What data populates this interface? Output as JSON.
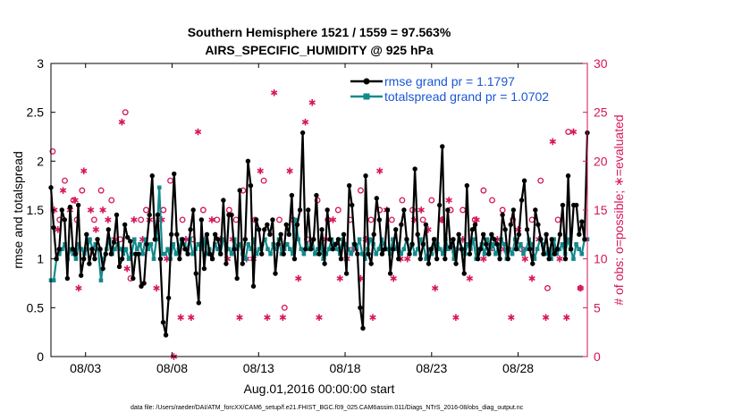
{
  "chart_data": {
    "type": "line",
    "title": "Southern Hemisphere 1521 / 1559 = 97.563%",
    "subtitle": "AIRS_SPECIFIC_HUMIDITY @ 925 hPa",
    "xlabel": "Aug.01,2016 00:00:00 start",
    "ylabel": "rmse and totalspread",
    "ylabel_right": "# of obs: o=possible; ∗=evaluated",
    "footer": "data file: /Users/raeder/DAI/ATM_forcXX/CAM6_setup/f.e21.FHIST_BGC.f09_025.CAM6assim.011/Diags_NTrS_2016-08/obs_diag_output.nc",
    "xlim": [
      1,
      32
    ],
    "ylim": [
      0,
      3
    ],
    "ylim_right": [
      0,
      30
    ],
    "x_ticks": [
      3,
      8,
      13,
      18,
      23,
      28
    ],
    "x_tick_labels": [
      "08/03",
      "08/08",
      "08/13",
      "08/18",
      "08/23",
      "08/28"
    ],
    "y_ticks": [
      0,
      0.5,
      1,
      1.5,
      2,
      2.5,
      3
    ],
    "y_tick_labels": [
      "0",
      "0.5",
      "1",
      "1.5",
      "2",
      "2.5",
      "3"
    ],
    "y_right_ticks": [
      0,
      5,
      10,
      15,
      20,
      25,
      30
    ],
    "y_right_tick_labels": [
      "0",
      "5",
      "10",
      "15",
      "20",
      "25",
      "30"
    ],
    "colors": {
      "rmse": "#000000",
      "spread": "#138a8c",
      "obs": "#d6155b",
      "legend_text": "#1a56d6"
    },
    "series": [
      {
        "name": "rmse",
        "legend": "rmse grand pr = 1.1797",
        "values": [
          1.73,
          1.32,
          1.0,
          1.1,
          1.5,
          1.4,
          0.8,
          1.53,
          1.1,
          1.05,
          1.55,
          0.83,
          1.0,
          1.25,
          0.95,
          1.1,
          1.0,
          1.2,
          1.1,
          0.9,
          1.05,
          1.3,
          1.05,
          1.17,
          1.45,
          0.92,
          1.0,
          1.35,
          1.22,
          1.18,
          0.8,
          1.05,
          1.05,
          0.72,
          0.75,
          1.15,
          1.45,
          1.85,
          1.2,
          1.45,
          1.0,
          0.35,
          0.22,
          0.6,
          1.25,
          1.87,
          1.25,
          1.0,
          1.2,
          1.1,
          1.05,
          1.3,
          1.5,
          0.85,
          0.55,
          1.4,
          0.9,
          1.25,
          1.05,
          1.0,
          1.25,
          1.2,
          1.05,
          1.6,
          0.95,
          1.45,
          1.45,
          1.1,
          0.8,
          1.7,
          0.95,
          1.2,
          2.0,
          1.75,
          0.72,
          1.4,
          1.3,
          1.05,
          1.3,
          1.35,
          1.25,
          1.4,
          0.85,
          1.15,
          1.25,
          1.05,
          1.35,
          1.25,
          1.65,
          1.0,
          1.35,
          1.5,
          2.29,
          1.1,
          1.5,
          1.1,
          1.2,
          1.65,
          1.05,
          1.3,
          0.95,
          1.5,
          1.2,
          1.1,
          1.15,
          1.2,
          1.0,
          1.25,
          0.85,
          1.75,
          1.55,
          1.15,
          1.05,
          0.5,
          0.29,
          1.85,
          1.05,
          0.95,
          1.25,
          1.62,
          1.4,
          1.05,
          1.1,
          1.5,
          0.85,
          1.1,
          1.3,
          1.0,
          1.35,
          1.5,
          1.2,
          1.05,
          1.15,
          1.92,
          1.25,
          1.0,
          1.15,
          1.35,
          0.95,
          1.1,
          1.2,
          1.0,
          1.55,
          2.15,
          1.0,
          1.5,
          1.12,
          1.2,
          0.95,
          1.25,
          1.1,
          0.85,
          1.75,
          1.05,
          1.3,
          1.35,
          1.0,
          1.1,
          1.25,
          1.15,
          1.05,
          1.25,
          1.2,
          1.15,
          1.0,
          1.45,
          1.3,
          1.0,
          1.35,
          1.5,
          1.1,
          1.25,
          1.6,
          1.8,
          1.3,
          1.1,
          0.95,
          1.5,
          1.35,
          1.2,
          1.05,
          1.25,
          1.0,
          1.2,
          1.05,
          1.1,
          1.25,
          1.55,
          1.0,
          1.85,
          1.1,
          1.55,
          1.55,
          1.25,
          1.38,
          1.2,
          2.29
        ]
      },
      {
        "name": "totalspread",
        "legend": "totalspread grand pr = 1.0702",
        "values": [
          0.78,
          0.78,
          1.0,
          1.05,
          1.1,
          1.15,
          1.0,
          1.1,
          1.05,
          1.0,
          1.15,
          1.1,
          1.05,
          1.1,
          1.2,
          1.1,
          1.15,
          1.1,
          0.78,
          1.0,
          1.1,
          1.2,
          1.05,
          1.1,
          1.15,
          1.1,
          1.05,
          1.1,
          1.0,
          1.05,
          1.2,
          1.1,
          1.15,
          1.05,
          1.2,
          1.1,
          1.15,
          1.0,
          1.2,
          1.73,
          1.05,
          1.05,
          1.1,
          1.0,
          1.15,
          1.05,
          1.1,
          1.2,
          1.15,
          1.1,
          1.2,
          1.05,
          1.1,
          1.15,
          1.1,
          1.2,
          1.05,
          1.1,
          1.0,
          1.15,
          1.1,
          1.05,
          1.2,
          1.15,
          1.1,
          1.05,
          1.2,
          1.1,
          1.15,
          1.05,
          1.0,
          1.15,
          1.1,
          1.2,
          1.05,
          1.1,
          1.15,
          1.2,
          1.1,
          1.05,
          1.15,
          1.1,
          1.2,
          1.05,
          1.1,
          1.15,
          1.1,
          1.05,
          1.4,
          1.2,
          1.1,
          1.05,
          1.15,
          1.1,
          1.2,
          1.05,
          1.1,
          1.15,
          1.0,
          1.05,
          1.1,
          1.2,
          1.15,
          1.1,
          1.05,
          1.2,
          1.15,
          1.1,
          1.05,
          1.15,
          1.1,
          1.2,
          1.05,
          1.0,
          1.1,
          1.2,
          1.15,
          1.05,
          1.1,
          1.2,
          1.15,
          1.1,
          1.05,
          1.2,
          1.1,
          1.15,
          1.05,
          1.1,
          1.2,
          1.1,
          1.15,
          1.05,
          1.1,
          1.2,
          1.15,
          1.0,
          1.1,
          1.05,
          1.2,
          1.15,
          1.1,
          1.05,
          1.2,
          1.1,
          1.15,
          1.0,
          1.1,
          1.2,
          1.1,
          1.05,
          1.15,
          1.1,
          1.2,
          1.0,
          1.1,
          1.15,
          1.05,
          1.2,
          1.1,
          1.15,
          1.05,
          1.1,
          1.2,
          1.15,
          1.0,
          1.1,
          1.05,
          1.2,
          1.1,
          1.15,
          1.05,
          1.1,
          1.2,
          1.15,
          1.0,
          1.1,
          1.2,
          1.15,
          1.05,
          1.1,
          1.0,
          1.2,
          1.05,
          1.1,
          1.15,
          1.05,
          1.2,
          1.1,
          1.0,
          1.15,
          1.1,
          1.05,
          1.2,
          1.2
        ]
      },
      {
        "name": "obs_possible",
        "marker": "o",
        "x": [
          1.1,
          1.5,
          1.8,
          2.3,
          2.5,
          2.8,
          3.5,
          3.9,
          4.5,
          5.0,
          5.3,
          5.6,
          6.2,
          6.5,
          7.5,
          7.9,
          8.6,
          9.2,
          9.8,
          10.6,
          11.3,
          11.7,
          12.1,
          12.8,
          13.3,
          14.2,
          14.5,
          15.0,
          15.8,
          16.4,
          17.0,
          17.6,
          18.3,
          18.9,
          19.5,
          20.0,
          20.7,
          21.3,
          21.9,
          22.5,
          23.0,
          23.6,
          24.1,
          24.8,
          25.5,
          26.0,
          26.5,
          27.1,
          27.7,
          28.2,
          28.8,
          29.3,
          29.7,
          30.3,
          30.9,
          31.6
        ],
        "values": [
          21,
          14,
          18,
          16,
          14,
          17,
          14,
          17,
          16,
          12,
          25,
          8,
          14,
          15,
          15,
          18,
          14,
          12,
          15,
          14,
          15,
          14,
          17,
          14,
          18,
          14,
          5,
          14,
          12,
          16,
          14,
          15,
          14,
          17,
          14,
          15,
          14,
          16,
          15,
          14,
          16,
          14,
          15,
          15,
          14,
          17,
          16,
          15,
          14,
          11,
          14,
          18,
          7,
          14,
          23,
          7
        ]
      },
      {
        "name": "obs_evaluated",
        "marker": "*",
        "x": [
          1.2,
          1.4,
          1.7,
          2.1,
          2.4,
          2.6,
          2.9,
          3.3,
          3.6,
          4.0,
          4.3,
          4.7,
          5.1,
          5.4,
          5.8,
          6.3,
          6.7,
          7.1,
          7.4,
          7.7,
          8.1,
          8.5,
          8.8,
          9.1,
          9.5,
          9.9,
          10.3,
          10.8,
          11.2,
          11.5,
          11.9,
          12.3,
          12.7,
          13.1,
          13.5,
          13.9,
          14.4,
          14.8,
          15.3,
          15.7,
          16.1,
          16.5,
          16.9,
          17.3,
          17.7,
          18.1,
          18.5,
          18.9,
          19.2,
          19.6,
          20.0,
          20.4,
          20.8,
          21.2,
          21.6,
          22.0,
          22.4,
          22.8,
          23.2,
          23.6,
          24.0,
          24.4,
          24.8,
          25.2,
          25.6,
          26.0,
          26.4,
          26.8,
          27.2,
          27.6,
          28.0,
          28.4,
          28.8,
          29.2,
          29.6,
          30.0,
          30.4,
          30.8,
          31.2,
          31.6
        ],
        "values": [
          15,
          13,
          17,
          15,
          16,
          7,
          19,
          15,
          13,
          15,
          14,
          12,
          24,
          9,
          14,
          12,
          14,
          7,
          14,
          10,
          0,
          4,
          12,
          4,
          23,
          12,
          14,
          12,
          10,
          12,
          4,
          10,
          10,
          19,
          4,
          27,
          4,
          19,
          8,
          24,
          26,
          4,
          12,
          14,
          8,
          10,
          11,
          8,
          12,
          4,
          19,
          15,
          8,
          10,
          10,
          14,
          15,
          13,
          7,
          14,
          16,
          4,
          12,
          8,
          14,
          10,
          11,
          12,
          11,
          4,
          13,
          10,
          8,
          12,
          4,
          22,
          10,
          4,
          23,
          7
        ]
      }
    ]
  }
}
